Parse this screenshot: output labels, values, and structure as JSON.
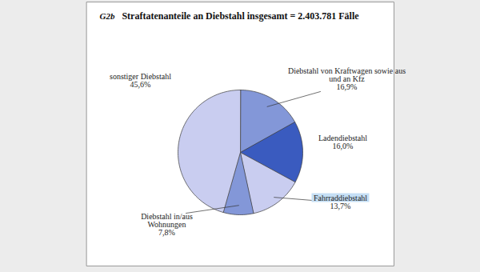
{
  "chart_data": {
    "type": "pie",
    "title": "Straftatenanteile an Diebstahl insgesamt = 2.403.781 Fälle",
    "annotations": [
      "G2b"
    ],
    "categories": [
      "Diebstahl von Kraftwagen sowie aus und an Kfz",
      "Ladendiebstahl",
      "Fahrraddiebstahl",
      "Diebstahl in/aus Wohnungen",
      "sonstiger Diebstahl"
    ],
    "values": [
      16.9,
      16.0,
      13.7,
      7.8,
      45.6
    ],
    "value_labels": [
      "16,9%",
      "16,0%",
      "13,7%",
      "7,8%",
      "45,6%"
    ],
    "colors": [
      "#8397d8",
      "#3a5bbf",
      "#c9cdf0",
      "#8397d8",
      "#c9cdf0"
    ],
    "data_labels": true
  }
}
